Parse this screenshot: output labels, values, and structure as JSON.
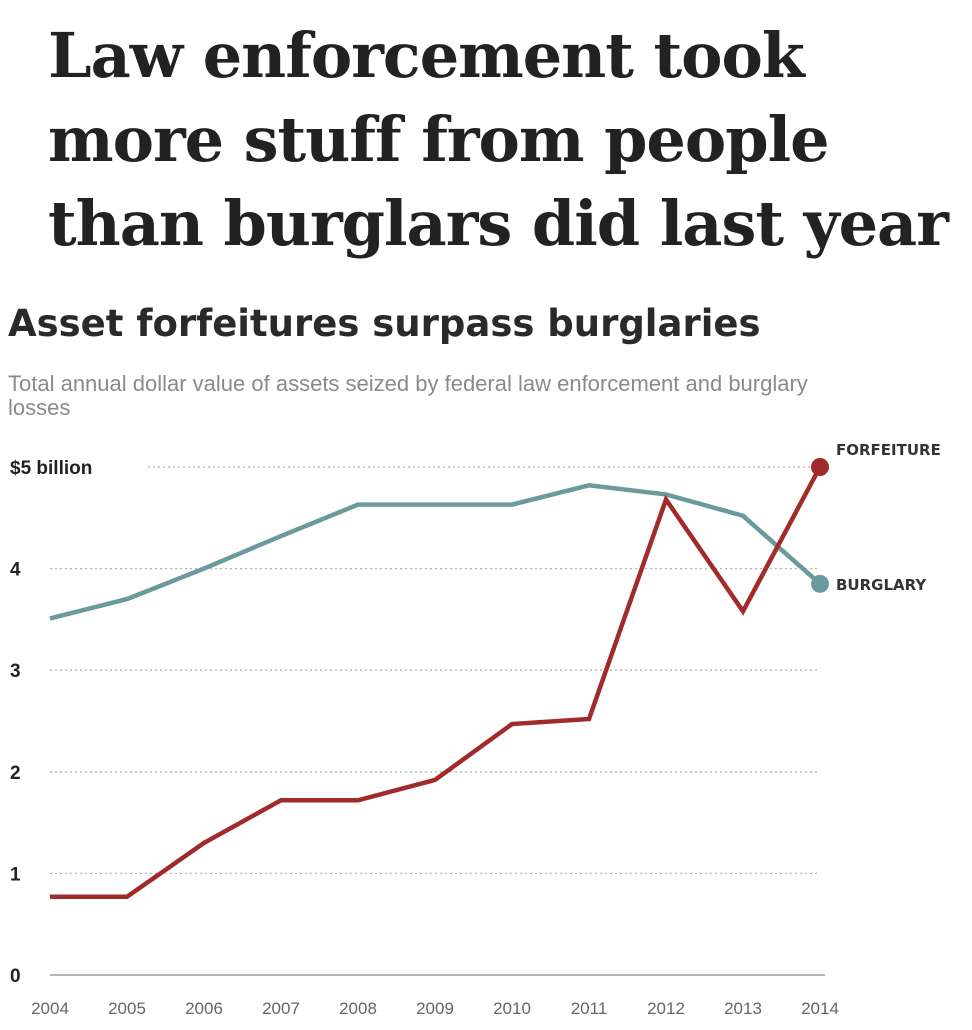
{
  "headline": "Law enforcement took more stuff from people than burglars did last year",
  "chart_data": {
    "type": "line",
    "title": "Asset forfeitures surpass burglaries",
    "subtitle": "Total annual dollar value of assets seized by federal law enforcement and burglary losses",
    "x": [
      2004,
      2005,
      2006,
      2007,
      2008,
      2009,
      2010,
      2011,
      2012,
      2013,
      2014
    ],
    "x_tick_labels": [
      "2004",
      "2005",
      "2006",
      "2007",
      "2008",
      "2009",
      "2010",
      "2011",
      "2012",
      "2013",
      "2014"
    ],
    "y_ticks": [
      0,
      1,
      2,
      3,
      4,
      5
    ],
    "y_tick_labels": [
      "0",
      "1",
      "2",
      "3",
      "4",
      "$5 billion"
    ],
    "ylim": [
      0,
      5
    ],
    "grid": true,
    "series": [
      {
        "name": "FORFEITURE",
        "color": "#a12a2a",
        "values": [
          0.77,
          0.77,
          1.3,
          1.72,
          1.72,
          1.92,
          2.47,
          2.52,
          4.68,
          3.58,
          5.0
        ]
      },
      {
        "name": "BURGLARY",
        "color": "#6a9a9c",
        "values": [
          3.51,
          3.7,
          4.0,
          4.32,
          4.63,
          4.63,
          4.63,
          4.82,
          4.73,
          4.52,
          3.85
        ]
      }
    ]
  }
}
